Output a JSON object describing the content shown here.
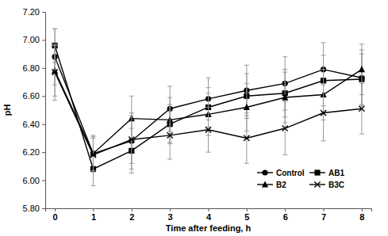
{
  "chart_data": {
    "type": "line",
    "x_label": "Time after feeding, h",
    "y_label": "pH",
    "x": [
      0,
      1,
      2,
      3,
      4,
      5,
      6,
      7,
      8
    ],
    "xlim": [
      -0.25,
      8.25
    ],
    "xticks": [
      0,
      1,
      2,
      3,
      4,
      5,
      6,
      7,
      8
    ],
    "ylim": [
      5.8,
      7.2
    ],
    "yticks": [
      {
        "value": 5.8,
        "label": "5.80"
      },
      {
        "value": 6.0,
        "label": "6.00"
      },
      {
        "value": 6.2,
        "label": "6.20"
      },
      {
        "value": 6.4,
        "label": "6.40"
      },
      {
        "value": 6.6,
        "label": "6.60"
      },
      {
        "value": 6.8,
        "label": "6.80"
      },
      {
        "value": 7.0,
        "label": "7.00"
      },
      {
        "value": 7.2,
        "label": "7.20"
      }
    ],
    "grid": false,
    "legend": "lower right",
    "series": [
      {
        "name": "Control",
        "color": "#000000",
        "marker": "circle",
        "line_style": "solid",
        "values": [
          6.88,
          6.19,
          6.28,
          6.51,
          6.58,
          6.64,
          6.69,
          6.79,
          6.73
        ],
        "errors": [
          0.2,
          0.13,
          0.2,
          0.16,
          0.15,
          0.18,
          0.19,
          0.19,
          0.2
        ]
      },
      {
        "name": "AB1",
        "color": "#000000",
        "marker": "square",
        "line_style": "solid",
        "values": [
          6.96,
          6.08,
          6.21,
          6.4,
          6.52,
          6.6,
          6.62,
          6.71,
          6.72
        ],
        "errors": [
          0.12,
          0.12,
          0.16,
          0.14,
          0.14,
          0.16,
          0.17,
          0.18,
          0.18
        ]
      },
      {
        "name": "B2",
        "color": "#000000",
        "marker": "triangle",
        "line_style": "solid",
        "values": [
          6.78,
          6.19,
          6.44,
          6.43,
          6.47,
          6.52,
          6.59,
          6.61,
          6.79
        ],
        "errors": [
          0.18,
          0.12,
          0.16,
          0.16,
          0.15,
          0.17,
          0.18,
          0.18,
          0.18
        ]
      },
      {
        "name": "B3C",
        "color": "#000000",
        "marker": "x",
        "line_style": "solid",
        "values": [
          6.77,
          6.18,
          6.29,
          6.32,
          6.36,
          6.3,
          6.37,
          6.48,
          6.51
        ],
        "errors": [
          0.2,
          0.12,
          0.17,
          0.17,
          0.16,
          0.18,
          0.19,
          0.2,
          0.18
        ]
      }
    ]
  }
}
